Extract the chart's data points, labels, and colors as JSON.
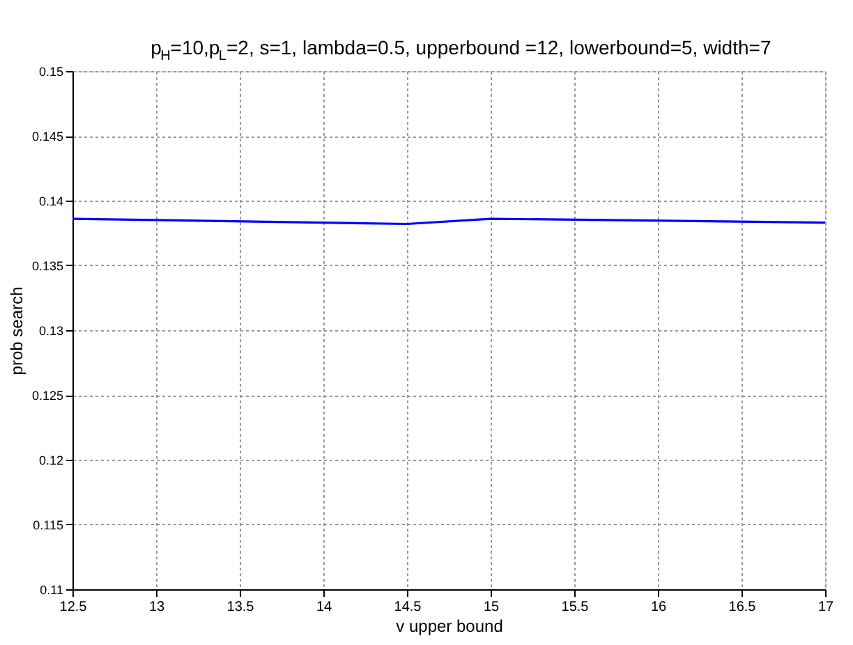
{
  "chart_data": {
    "type": "line",
    "title": "p$_{H}$=10,p$_{L}$=2, s=1, lambda=0.5, upperbound =12, lowerbound=5, width=7",
    "xlabel": "v upper bound",
    "ylabel": "prob search",
    "x": [
      12.5,
      14.5,
      15,
      17
    ],
    "series": [
      {
        "color": "#0000ff",
        "values": [
          0.1386,
          0.1382,
          0.1386,
          0.1383
        ]
      }
    ],
    "xlim": [
      12.5,
      17
    ],
    "xticks": [
      12.5,
      13,
      13.5,
      14,
      14.5,
      15,
      15.5,
      16,
      16.5,
      17
    ],
    "ylim": [
      0.11,
      0.15
    ],
    "yticks": [
      0.11,
      0.115,
      0.12,
      0.125,
      0.13,
      0.135,
      0.14,
      0.145,
      0.15
    ],
    "grid": true,
    "legend": false,
    "marker": "none",
    "line_style": "solid"
  }
}
